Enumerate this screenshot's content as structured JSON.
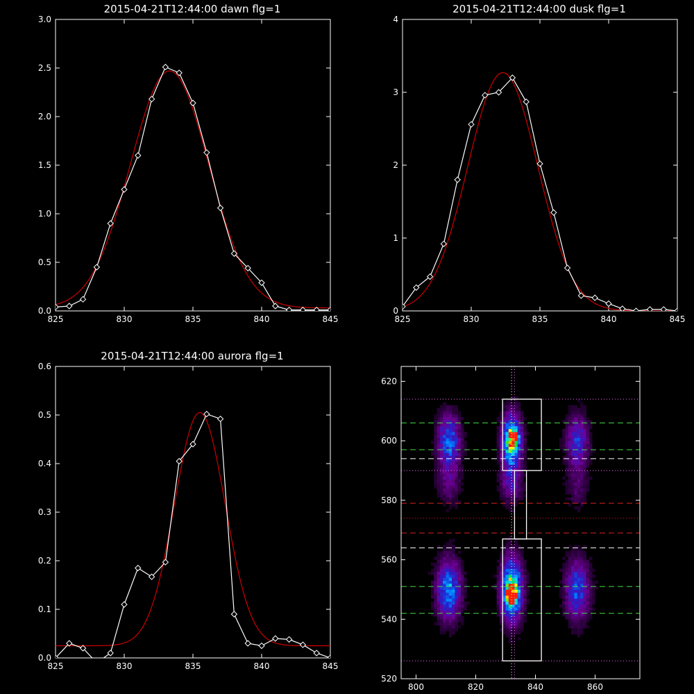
{
  "chart_data": [
    {
      "type": "line",
      "title": "2015-04-21T12:44:00 dawn flg=1",
      "xlabel": "",
      "ylabel": "",
      "xlim": [
        825,
        845
      ],
      "ylim": [
        0,
        3.0
      ],
      "xticks": [
        825,
        830,
        835,
        840,
        845
      ],
      "xtick_labels": [
        "825",
        "830",
        "835",
        "840",
        "845"
      ],
      "yticks": [
        0,
        0.5,
        1.0,
        1.5,
        2.0,
        2.5,
        3.0
      ],
      "ytick_labels": [
        "0.0",
        "0.5",
        "1.0",
        "1.5",
        "2.0",
        "2.5",
        "3.0"
      ],
      "series": [
        {
          "role": "measured",
          "color": "#ffffff",
          "marker": "diamond",
          "x": [
            825,
            826,
            827,
            828,
            829,
            830,
            831,
            832,
            833,
            834,
            835,
            836,
            837,
            838,
            839,
            840,
            841,
            842,
            843,
            844,
            845
          ],
          "y": [
            0.04,
            0.05,
            0.12,
            0.45,
            0.9,
            1.25,
            1.6,
            2.18,
            2.51,
            2.45,
            2.14,
            1.63,
            1.06,
            0.59,
            0.44,
            0.29,
            0.05,
            0.01,
            0.01,
            0.01,
            0.01
          ]
        },
        {
          "role": "fit",
          "color": "#d00000",
          "model": "gaussian",
          "amplitude": 2.44,
          "center": 833.3,
          "sigma": 2.85,
          "offset": 0.03
        }
      ]
    },
    {
      "type": "line",
      "title": "2015-04-21T12:44:00 dusk flg=1",
      "xlabel": "",
      "ylabel": "",
      "xlim": [
        825,
        845
      ],
      "ylim": [
        0,
        4
      ],
      "xticks": [
        825,
        830,
        835,
        840,
        845
      ],
      "xtick_labels": [
        "825",
        "830",
        "835",
        "840",
        "845"
      ],
      "yticks": [
        0,
        1,
        2,
        3,
        4
      ],
      "ytick_labels": [
        "0",
        "1",
        "2",
        "3",
        "4"
      ],
      "series": [
        {
          "role": "measured",
          "color": "#ffffff",
          "marker": "diamond",
          "x": [
            825,
            826,
            827,
            828,
            829,
            830,
            831,
            832,
            833,
            834,
            835,
            836,
            837,
            838,
            839,
            840,
            841,
            842,
            843,
            844,
            845
          ],
          "y": [
            0.06,
            0.32,
            0.47,
            0.92,
            1.8,
            2.56,
            2.96,
            3.0,
            3.2,
            2.87,
            2.02,
            1.35,
            0.59,
            0.21,
            0.18,
            0.1,
            0.03,
            0.0,
            0.02,
            0.02,
            0.0
          ]
        },
        {
          "role": "fit",
          "color": "#d00000",
          "model": "gaussian",
          "amplitude": 3.27,
          "center": 832.3,
          "sigma": 2.55,
          "offset": 0.0
        }
      ]
    },
    {
      "type": "line",
      "title": "2015-04-21T12:44:00 aurora flg=1",
      "xlabel": "",
      "ylabel": "",
      "xlim": [
        825,
        845
      ],
      "ylim": [
        0,
        0.6
      ],
      "xticks": [
        825,
        830,
        835,
        840,
        845
      ],
      "xtick_labels": [
        "825",
        "830",
        "835",
        "840",
        "845"
      ],
      "yticks": [
        0,
        0.1,
        0.2,
        0.3,
        0.4,
        0.5,
        0.6
      ],
      "ytick_labels": [
        "0.0",
        "0.1",
        "0.2",
        "0.3",
        "0.4",
        "0.5",
        "0.6"
      ],
      "series": [
        {
          "role": "measured",
          "color": "#ffffff",
          "marker": "diamond",
          "x": [
            825,
            826,
            827,
            828,
            829,
            830,
            831,
            832,
            833,
            834,
            835,
            836,
            837,
            838,
            839,
            840,
            841,
            842,
            843,
            844,
            845
          ],
          "y": [
            0.0,
            0.03,
            0.02,
            -0.01,
            0.01,
            0.11,
            0.185,
            0.167,
            0.197,
            0.405,
            0.44,
            0.502,
            0.492,
            0.09,
            0.03,
            0.025,
            0.04,
            0.038,
            0.027,
            0.01,
            0.0
          ]
        },
        {
          "role": "fit",
          "color": "#d00000",
          "model": "gaussian",
          "amplitude": 0.48,
          "center": 835.5,
          "sigma": 1.85,
          "offset": 0.025
        }
      ]
    },
    {
      "type": "heatmap",
      "title": "",
      "xlabel": "",
      "ylabel": "",
      "xlim": [
        795,
        875
      ],
      "ylim": [
        520,
        625
      ],
      "xticks": [
        800,
        820,
        840,
        860
      ],
      "xtick_labels": [
        "800",
        "820",
        "840",
        "860"
      ],
      "yticks": [
        520,
        540,
        560,
        580,
        600,
        620
      ],
      "ytick_labels": [
        "520",
        "540",
        "560",
        "580",
        "600",
        "620"
      ],
      "blobs": [
        {
          "x": 811,
          "y": 600,
          "sx": 2.6,
          "sy": 6,
          "amp": 0.5
        },
        {
          "x": 811,
          "y": 586,
          "sx": 2.6,
          "sy": 5,
          "amp": 0.2
        },
        {
          "x": 811,
          "y": 550,
          "sx": 2.8,
          "sy": 7,
          "amp": 0.55
        },
        {
          "x": 832,
          "y": 600,
          "sx": 2.2,
          "sy": 6,
          "amp": 0.8
        },
        {
          "x": 833,
          "y": 601,
          "sx": 1.0,
          "sy": 1.6,
          "amp": 0.45
        },
        {
          "x": 832,
          "y": 586,
          "sx": 2.6,
          "sy": 5,
          "amp": 0.25
        },
        {
          "x": 832,
          "y": 550,
          "sx": 2.4,
          "sy": 7,
          "amp": 0.85
        },
        {
          "x": 832,
          "y": 548,
          "sx": 1.2,
          "sy": 2.0,
          "amp": 0.55
        },
        {
          "x": 854,
          "y": 600,
          "sx": 2.6,
          "sy": 6,
          "amp": 0.38
        },
        {
          "x": 854,
          "y": 585,
          "sx": 2.6,
          "sy": 5,
          "amp": 0.15
        },
        {
          "x": 854,
          "y": 550,
          "sx": 2.8,
          "sy": 7,
          "amp": 0.45
        }
      ],
      "boxes": [
        {
          "x0": 829,
          "x1": 842,
          "y0": 590,
          "y1": 614,
          "color": "#ffffff"
        },
        {
          "x0": 829,
          "x1": 842,
          "y0": 526,
          "y1": 567,
          "color": "#ffffff"
        },
        {
          "x0": 833,
          "x1": 837,
          "y0": 567,
          "y1": 590,
          "color": "#ffffff"
        }
      ],
      "hlines": [
        {
          "y": 614,
          "color": "#ff66ff",
          "style": "dotted"
        },
        {
          "y": 606,
          "color": "#44dd44",
          "style": "dashed"
        },
        {
          "y": 597,
          "color": "#44dd44",
          "style": "dashed"
        },
        {
          "y": 594,
          "color": "#ffffff",
          "style": "dashed"
        },
        {
          "y": 590,
          "color": "#ff66ff",
          "style": "dotted"
        },
        {
          "y": 579,
          "color": "#dd2222",
          "style": "dashed"
        },
        {
          "y": 574,
          "color": "#dd2222",
          "style": "dotted"
        },
        {
          "y": 569,
          "color": "#dd2222",
          "style": "dashed"
        },
        {
          "y": 564,
          "color": "#ffffff",
          "style": "dashed"
        },
        {
          "y": 551,
          "color": "#44dd44",
          "style": "dashed"
        },
        {
          "y": 542,
          "color": "#44dd44",
          "style": "dashed"
        },
        {
          "y": 526,
          "color": "#ff66ff",
          "style": "dotted"
        }
      ],
      "vlines": [
        {
          "x": 832,
          "color": "#ffffff",
          "style": "dotted"
        },
        {
          "x": 833,
          "color": "#ff66ff",
          "style": "dotted"
        }
      ]
    }
  ]
}
